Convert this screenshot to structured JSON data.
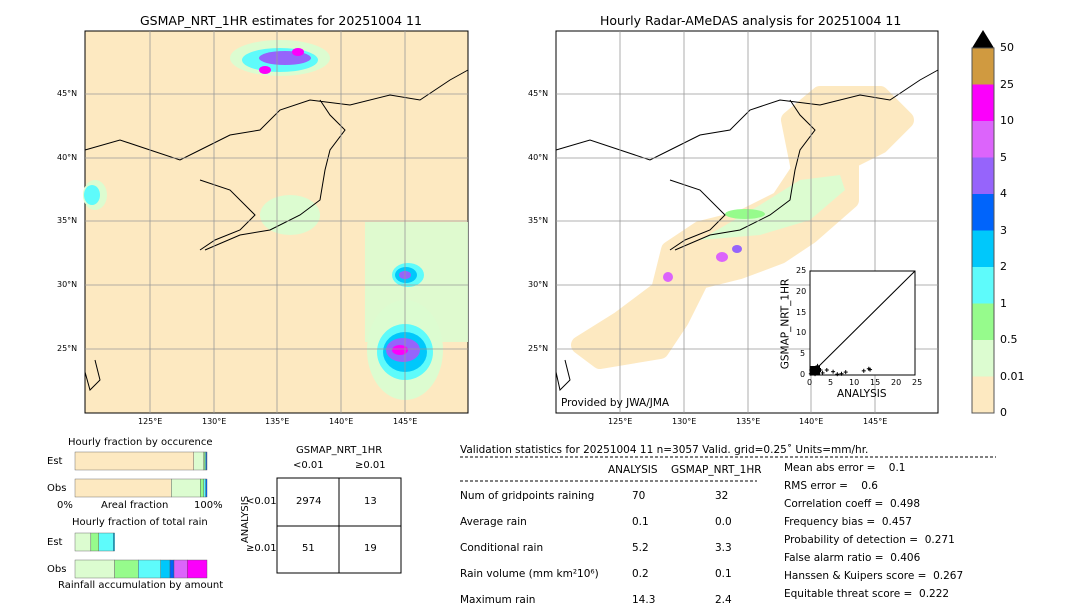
{
  "left_map": {
    "title": "GSMAP_NRT_1HR estimates for 20251004 11",
    "lon_ticks": [
      "125°E",
      "130°E",
      "135°E",
      "140°E",
      "145°E"
    ],
    "lat_ticks": [
      "45°N",
      "40°N",
      "35°N",
      "30°N",
      "25°N"
    ]
  },
  "right_map": {
    "title": "Hourly Radar-AMeDAS analysis for 20251004 11",
    "lon_ticks": [
      "125°E",
      "130°E",
      "135°E",
      "140°E",
      "145°E"
    ],
    "lat_ticks": [
      "45°N",
      "40°N",
      "35°N",
      "30°N",
      "25°N"
    ],
    "credit": "Provided by JWA/JMA"
  },
  "colors": {
    "background_land_ocean": "#fde9c1",
    "accent_line": "#000000"
  },
  "colorbar": {
    "ticks": [
      "0",
      "0.01",
      "0.5",
      "1",
      "2",
      "3",
      "4",
      "5",
      "10",
      "25",
      "50"
    ],
    "colors": [
      "#fde9c1",
      "#dcfcd0",
      "#96fb8c",
      "#5efbfb",
      "#00c8fb",
      "#0064fb",
      "#9664fb",
      "#dc64fb",
      "#fb00fb",
      "#d09a40"
    ],
    "extend_color": "#000000"
  },
  "chart_data": [
    {
      "type": "scatter",
      "xlabel": "ANALYSIS",
      "ylabel": "GSMAP_NRT_1HR",
      "xlim": [
        0,
        25
      ],
      "ylim": [
        0,
        25
      ],
      "x_ticks": [
        "0",
        "5",
        "10",
        "15",
        "20",
        "25"
      ],
      "y_ticks": [
        "0",
        "5",
        "10",
        "15",
        "20",
        "25"
      ],
      "diagonal": true,
      "points": [
        [
          0.2,
          0.3
        ],
        [
          0.5,
          0.8
        ],
        [
          0.8,
          0.5
        ],
        [
          1,
          1
        ],
        [
          1.5,
          1.6
        ],
        [
          2,
          0.9
        ],
        [
          2.5,
          1.2
        ],
        [
          3,
          0.5
        ],
        [
          4,
          1.2
        ],
        [
          5.5,
          0.8
        ],
        [
          6.5,
          0.2
        ],
        [
          7.5,
          0.3
        ],
        [
          8.5,
          0.7
        ],
        [
          12.8,
          1.0
        ],
        [
          14,
          1.5
        ],
        [
          14.3,
          1.3
        ],
        [
          0.3,
          1.2
        ],
        [
          1.2,
          0.2
        ],
        [
          1.8,
          2.2
        ]
      ]
    },
    {
      "type": "bar",
      "title": "Hourly fraction by occurence",
      "xlabel": "Areal fraction",
      "x_ticks": [
        "0%",
        "100%"
      ],
      "categories": [
        "Est",
        "Obs"
      ],
      "series_est": [
        0.9,
        0.075,
        0.01,
        0.008,
        0.007
      ],
      "series_obs": [
        0.73,
        0.22,
        0.025,
        0.015,
        0.01
      ]
    },
    {
      "type": "bar",
      "title": "Hourly fraction of total rain",
      "xlabel": "Rainfall accumulation by amount",
      "categories": [
        "Est",
        "Obs"
      ],
      "series_est": [
        0.12,
        0.06,
        0.11,
        0.01,
        0.0,
        0.0,
        0.0
      ],
      "series_obs": [
        0.3,
        0.18,
        0.17,
        0.07,
        0.03,
        0.1,
        0.15
      ]
    }
  ],
  "contingency": {
    "title": "GSMAP_NRT_1HR",
    "col_headers": [
      "<0.01",
      "≥0.01"
    ],
    "row_label": "ANALYSIS",
    "row_headers": [
      "<0.01",
      "≥0.01"
    ],
    "cells": [
      [
        "2974",
        "13"
      ],
      [
        "51",
        "19"
      ]
    ]
  },
  "stats": {
    "header": "Validation statistics for 20251004 11  n=3057 Valid. grid=0.25˚ Units=mm/hr.",
    "col_headers": [
      "ANALYSIS",
      "GSMAP_NRT_1HR"
    ],
    "rows": [
      [
        "Num of gridpoints raining",
        "70",
        "32"
      ],
      [
        "Average rain",
        "0.1",
        "0.0"
      ],
      [
        "Conditional rain",
        "5.2",
        "3.3"
      ],
      [
        "Rain volume (mm km²10⁶)",
        "0.2",
        "0.1"
      ],
      [
        "Maximum rain",
        "14.3",
        "2.4"
      ]
    ],
    "scores": [
      "Mean abs error =    0.1",
      "RMS error =    0.6",
      "Correlation coeff =  0.498",
      "Frequency bias =  0.457",
      "Probability of detection =  0.271",
      "False alarm ratio =  0.406",
      "Hanssen & Kuipers score =  0.267",
      "Equitable threat score =  0.222"
    ]
  }
}
